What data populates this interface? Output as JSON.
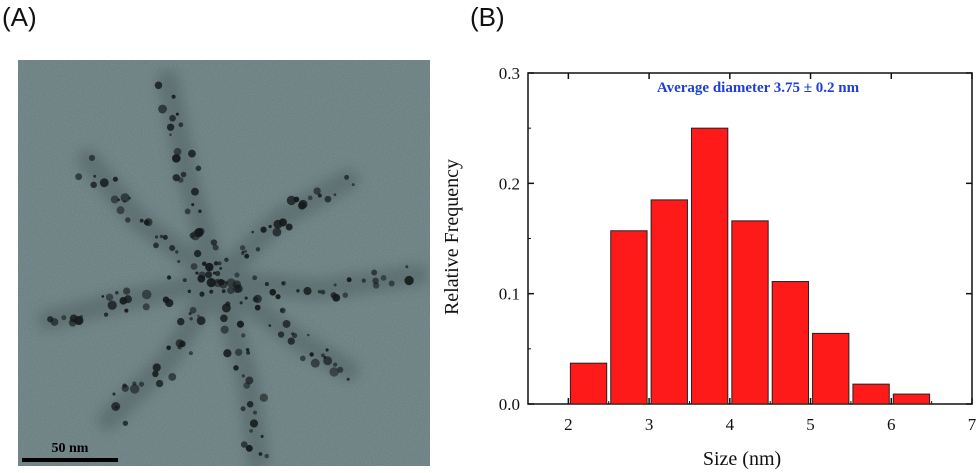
{
  "panels": {
    "a_label": "(A)",
    "b_label": "(B)"
  },
  "tem_image": {
    "scale_bar_label": "50 nm"
  },
  "chart_data": {
    "type": "bar",
    "x": [
      2.25,
      2.75,
      3.25,
      3.75,
      4.25,
      4.75,
      5.25,
      5.75,
      6.25
    ],
    "values": [
      0.037,
      0.157,
      0.185,
      0.25,
      0.166,
      0.111,
      0.064,
      0.018,
      0.009
    ],
    "bar_width": 0.45,
    "title": "",
    "annotation": "Average diameter 3.75 ± 0.2 nm",
    "xlabel": "Size (nm)",
    "ylabel": "Relative Frequency",
    "xlim": [
      1.5,
      7
    ],
    "ylim": [
      0,
      0.3
    ],
    "xticks": [
      2,
      3,
      4,
      5,
      6,
      7
    ],
    "yticks": [
      0.0,
      0.1,
      0.2,
      0.3
    ],
    "ytick_labels": [
      "0.0",
      "0.1",
      "0.2",
      "0.3"
    ],
    "grid": false,
    "colors": {
      "bar": "#ff1a1a",
      "annotation": "#1f3fd6",
      "axis": "#111111"
    }
  }
}
